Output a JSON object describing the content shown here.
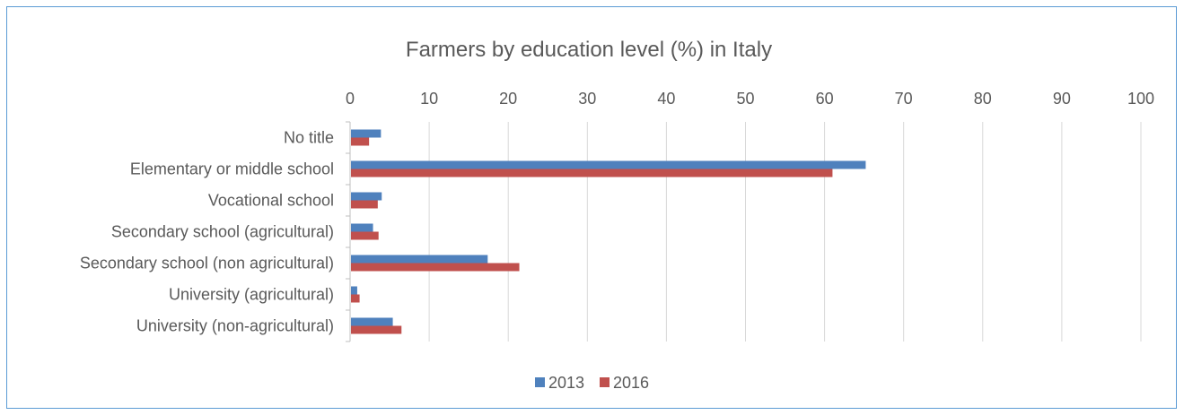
{
  "chart_data": {
    "type": "bar",
    "orientation": "horizontal",
    "title": "Farmers by education level (%) in Italy",
    "xlabel": "",
    "ylabel": "",
    "xlim": [
      0,
      100
    ],
    "x_ticks": [
      "0",
      "10",
      "20",
      "30",
      "40",
      "50",
      "60",
      "70",
      "80",
      "90",
      "100"
    ],
    "x_axis_position": "top",
    "grid": true,
    "legend_position": "bottom",
    "categories": [
      "No title",
      "Elementary or middle school",
      "Vocational school",
      "Secondary school (agricultural)",
      "Secondary school (non agricultural)",
      "University (agricultural)",
      "University (non-agricultural)"
    ],
    "series": [
      {
        "name": "2013",
        "color": "#4f81bd",
        "values": [
          3.9,
          65.2,
          4.0,
          2.9,
          17.4,
          0.9,
          5.4
        ]
      },
      {
        "name": "2016",
        "color": "#c0504d",
        "values": [
          2.4,
          61.0,
          3.5,
          3.6,
          21.4,
          1.2,
          6.5
        ]
      }
    ]
  }
}
